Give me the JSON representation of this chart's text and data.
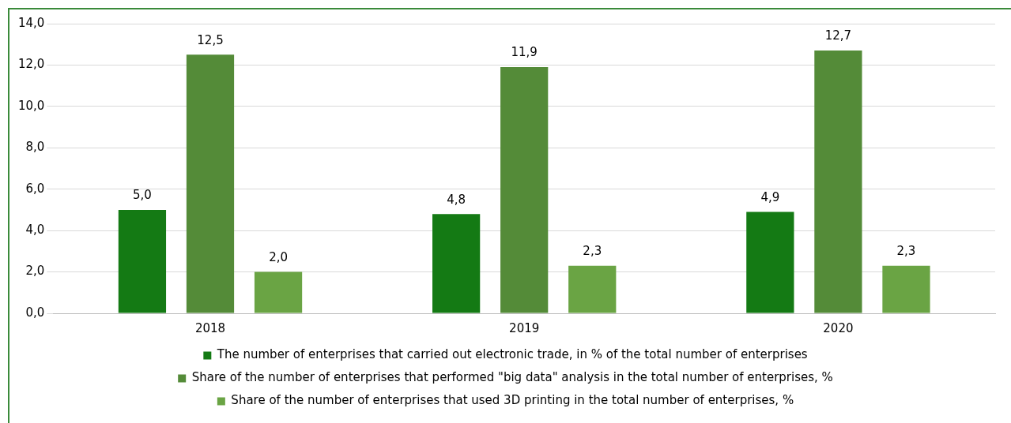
{
  "chart_data": {
    "type": "bar",
    "categories": [
      "2018",
      "2019",
      "2020"
    ],
    "series": [
      {
        "name": "The number of enterprises that carried out electronic trade, in % of the total number of enterprises",
        "color": "#147a14",
        "values": [
          5.0,
          4.8,
          4.9
        ],
        "value_labels": [
          "5,0",
          "4,8",
          "4,9"
        ]
      },
      {
        "name": "Share of the number of enterprises that performed \"big data\" analysis in the total number of enterprises, %",
        "color": "#548b38",
        "values": [
          12.5,
          11.9,
          12.7
        ],
        "value_labels": [
          "12,5",
          "11,9",
          "12,7"
        ]
      },
      {
        "name": "Share of the number of enterprises that used 3D printing in the total number of enterprises, %",
        "color": "#6aa444",
        "values": [
          2.0,
          2.3,
          2.3
        ],
        "value_labels": [
          "2,0",
          "2,3",
          "2,3"
        ]
      }
    ],
    "ylim": [
      0,
      14
    ],
    "yticks": [
      {
        "value": 0,
        "label": "0,0"
      },
      {
        "value": 2,
        "label": "2,0"
      },
      {
        "value": 4,
        "label": "4,0"
      },
      {
        "value": 6,
        "label": "6,0"
      },
      {
        "value": 8,
        "label": "8,0"
      },
      {
        "value": 10,
        "label": "10,0"
      },
      {
        "value": 12,
        "label": "12,0"
      },
      {
        "value": 14,
        "label": "14,0"
      }
    ],
    "grid": "y",
    "legend": "bottom"
  }
}
